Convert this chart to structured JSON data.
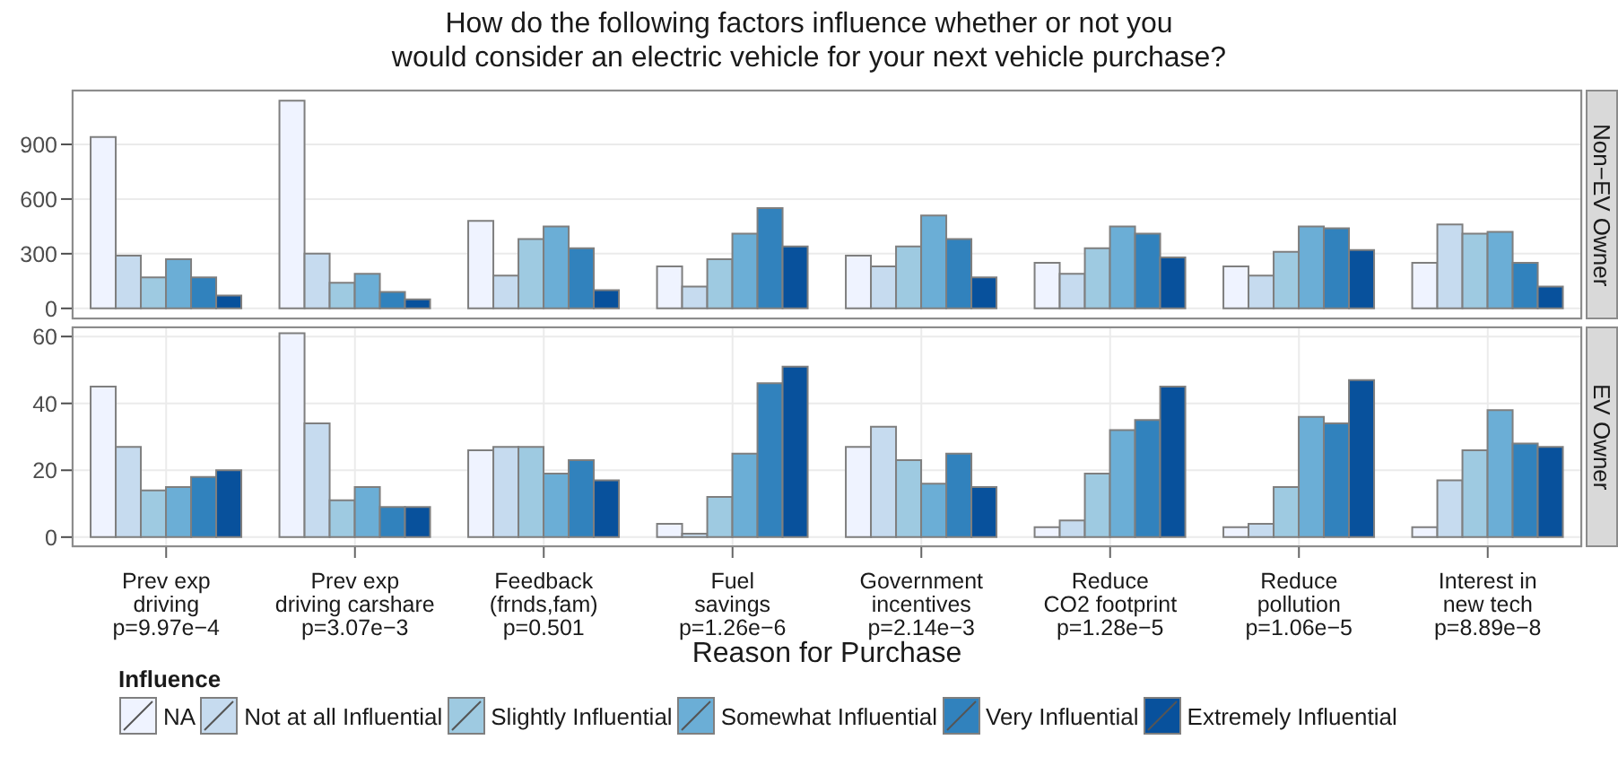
{
  "chart_data": [
    {
      "type": "bar",
      "title": "How do the following factors influence whether or not you\nwould consider an electric vehicle for your next vehicle purchase?",
      "annotations": [
        "Non−EV Owner"
      ],
      "categories": [
        null,
        null,
        null,
        null,
        null,
        null,
        null,
        null
      ],
      "series": [
        {
          "color": "#eff3ff",
          "values": [
            940,
            1140,
            480,
            230,
            290,
            250,
            230,
            250
          ]
        },
        {
          "color": "#c6dbef",
          "values": [
            290,
            300,
            180,
            120,
            230,
            190,
            180,
            460
          ]
        },
        {
          "color": "#9ecae1",
          "values": [
            170,
            140,
            380,
            270,
            340,
            330,
            310,
            410
          ]
        },
        {
          "color": "#6baed6",
          "values": [
            270,
            190,
            450,
            410,
            510,
            450,
            450,
            420
          ]
        },
        {
          "color": "#3182bd",
          "values": [
            170,
            90,
            330,
            550,
            380,
            410,
            440,
            250
          ]
        },
        {
          "color": "#08519c",
          "values": [
            70,
            50,
            100,
            340,
            170,
            280,
            320,
            120
          ]
        }
      ],
      "ylim": [
        -60,
        1200
      ],
      "yticks": [
        0,
        300,
        600,
        900
      ],
      "grid": true,
      "tick_labels": "y"
    },
    {
      "type": "bar",
      "xlabel": "Reason for Purchase",
      "legend_title": "Influence",
      "annotations": [
        "EV Owner"
      ],
      "categories": [
        "Prev exp\ndriving\np=9.97e−4",
        "Prev exp\ndriving carshare\np=3.07e−3",
        "Feedback\n(frnds,fam)\np=0.501",
        "Fuel\nsavings\np=1.26e−6",
        "Government\nincentives\np=2.14e−3",
        "Reduce\nCO2 footprint\np=1.28e−5",
        "Reduce\npollution\np=1.06e−5",
        "Interest in\nnew tech\np=8.89e−8"
      ],
      "series": [
        {
          "name": "NA",
          "color": "#eff3ff",
          "values": [
            45,
            61,
            26,
            4,
            27,
            3,
            3,
            3
          ]
        },
        {
          "name": "Not at all Influential",
          "color": "#c6dbef",
          "values": [
            27,
            34,
            27,
            1,
            33,
            5,
            4,
            17
          ]
        },
        {
          "name": "Slightly Influential",
          "color": "#9ecae1",
          "values": [
            14,
            11,
            27,
            12,
            23,
            19,
            15,
            26
          ]
        },
        {
          "name": "Somewhat Influential",
          "color": "#6baed6",
          "values": [
            15,
            15,
            19,
            25,
            16,
            32,
            36,
            38
          ]
        },
        {
          "name": "Very Influential",
          "color": "#3182bd",
          "values": [
            18,
            9,
            23,
            46,
            25,
            35,
            34,
            28
          ]
        },
        {
          "name": "Extremely Influential",
          "color": "#08519c",
          "values": [
            20,
            9,
            17,
            51,
            15,
            45,
            47,
            27
          ]
        }
      ],
      "ylim": [
        -3,
        63
      ],
      "yticks": [
        0,
        20,
        40,
        60
      ],
      "grid": true,
      "legend": "bottom"
    }
  ]
}
